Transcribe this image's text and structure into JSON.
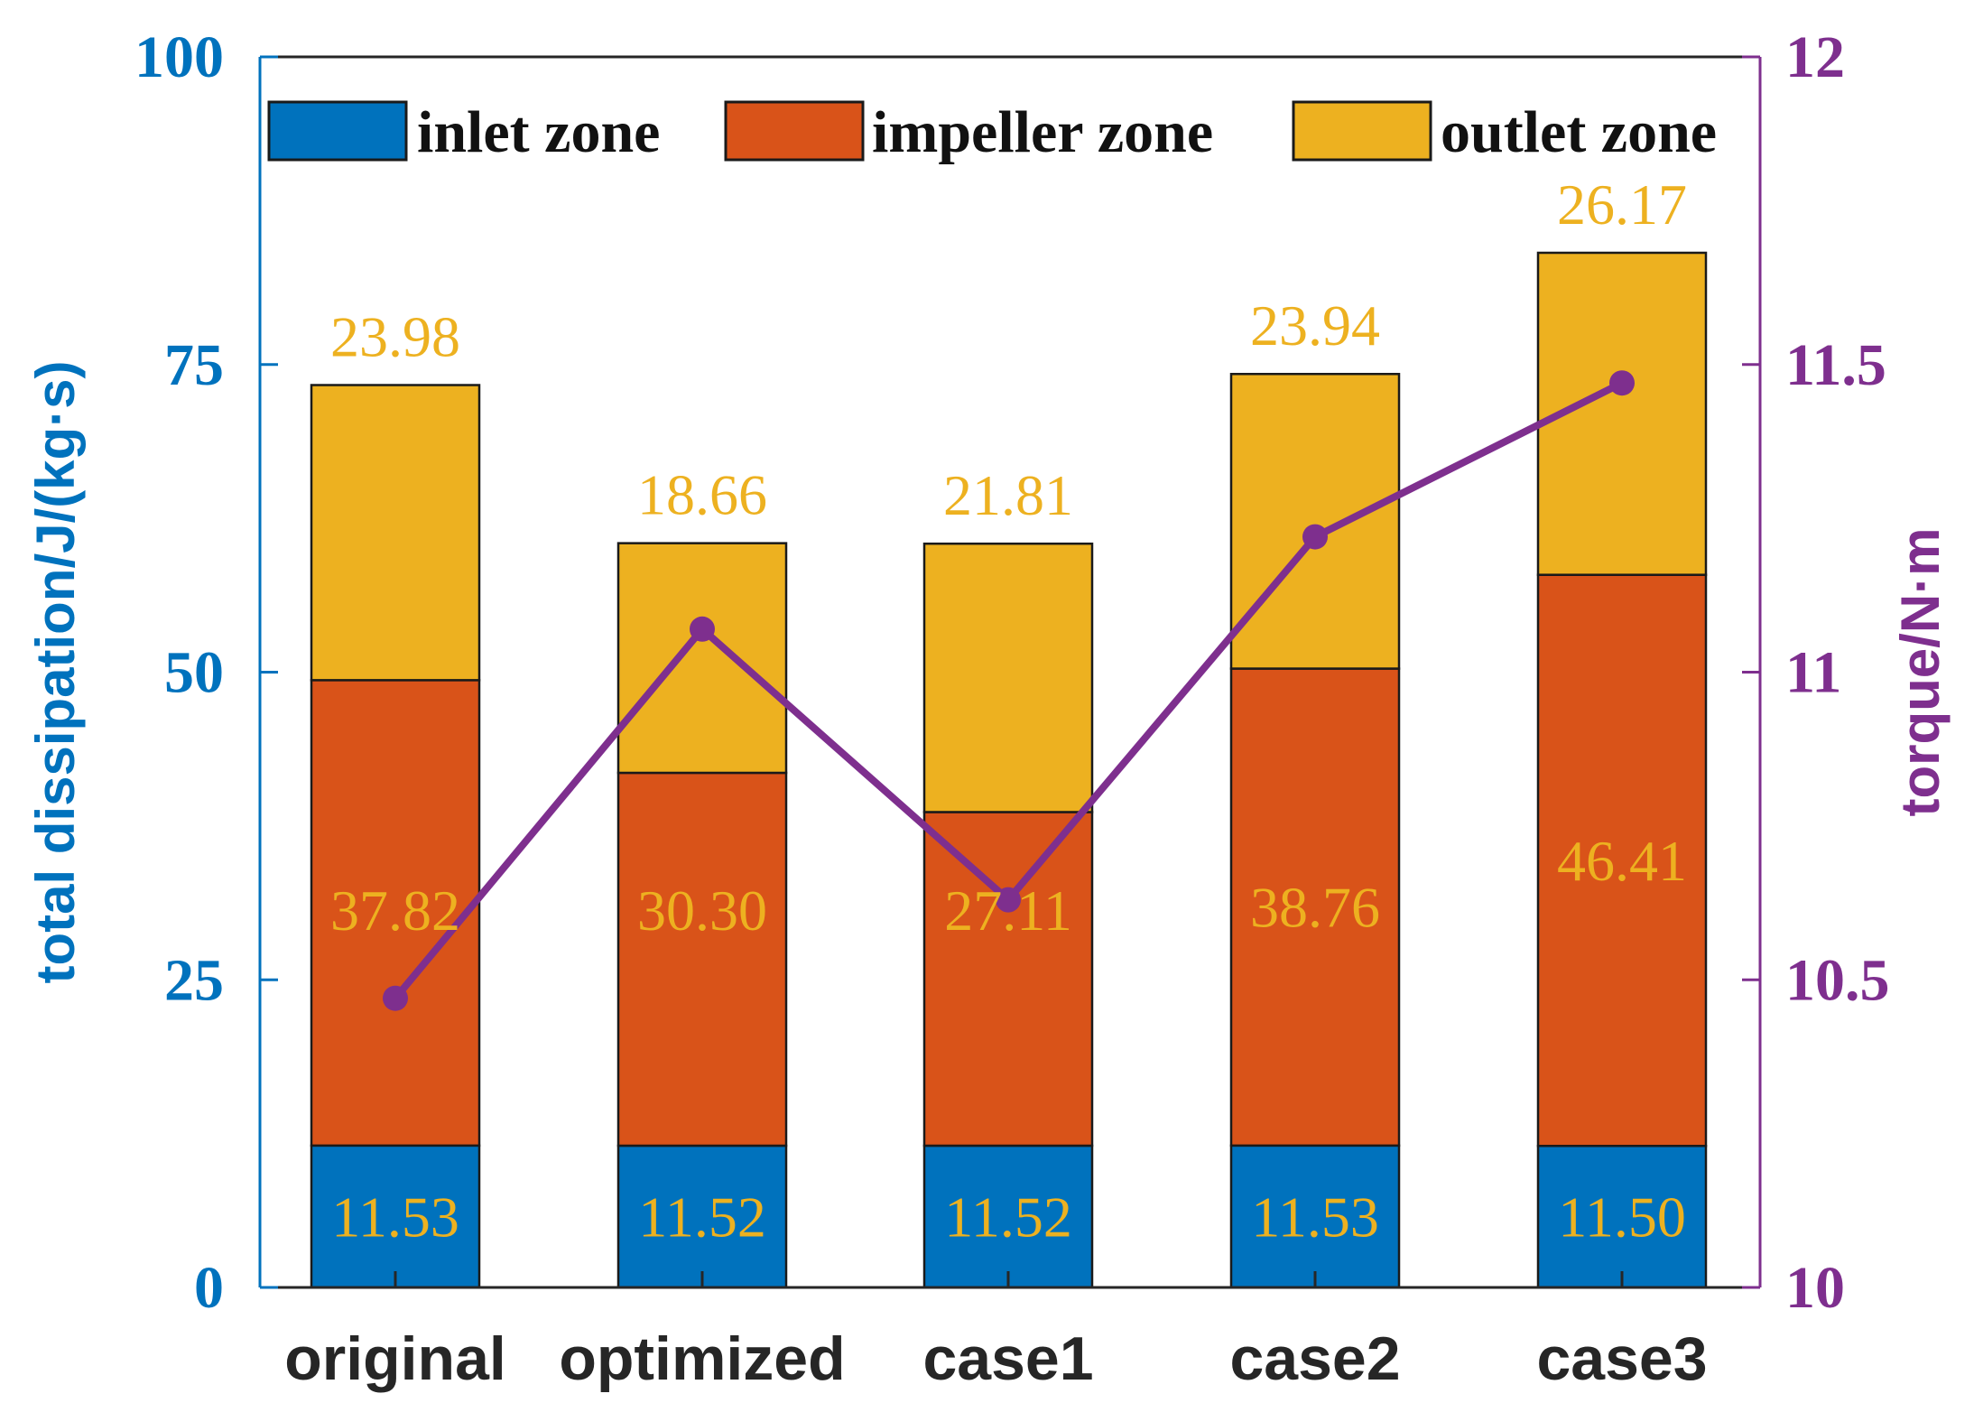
{
  "chart_data": {
    "type": "bar",
    "stacked": true,
    "categories": [
      "original",
      "optimized",
      "case1",
      "case2",
      "case3"
    ],
    "series": [
      {
        "name": "inlet zone",
        "values": [
          11.53,
          11.52,
          11.52,
          11.53,
          11.5
        ],
        "labels": [
          "11.53",
          "11.52",
          "11.52",
          "11.53",
          "11.50"
        ],
        "color": "#0072BD"
      },
      {
        "name": "impeller zone",
        "values": [
          37.82,
          30.3,
          27.11,
          38.76,
          46.41
        ],
        "labels": [
          "37.82",
          "30.30",
          "27.11",
          "38.76",
          "46.41"
        ],
        "color": "#D95319"
      },
      {
        "name": "outlet zone",
        "values": [
          23.98,
          18.66,
          21.81,
          23.94,
          26.17
        ],
        "labels": [
          "23.98",
          "18.66",
          "21.81",
          "23.94",
          "26.17"
        ],
        "color": "#EDB120"
      }
    ],
    "line_series": {
      "name": "torque",
      "axis": "right",
      "values": [
        10.47,
        11.07,
        10.63,
        11.22,
        11.47
      ],
      "color": "#7E2F8E"
    },
    "data_label_color": "#EDB120",
    "ylabel": "total dissipation/J/(kg·s)",
    "ylabel_color": "#0072BD",
    "ylim": [
      0,
      100
    ],
    "yticks": [
      0,
      25,
      50,
      75,
      100
    ],
    "ytick_labels": [
      "0",
      "25",
      "50",
      "75",
      "100"
    ],
    "y2label": "torque/N·m",
    "y2label_color": "#7E2F8E",
    "y2lim": [
      10,
      12
    ],
    "y2ticks": [
      10,
      10.5,
      11,
      11.5,
      12
    ],
    "y2tick_labels": [
      "10",
      "10.5",
      "11",
      "11.5",
      "12"
    ],
    "legend_position": "top"
  }
}
